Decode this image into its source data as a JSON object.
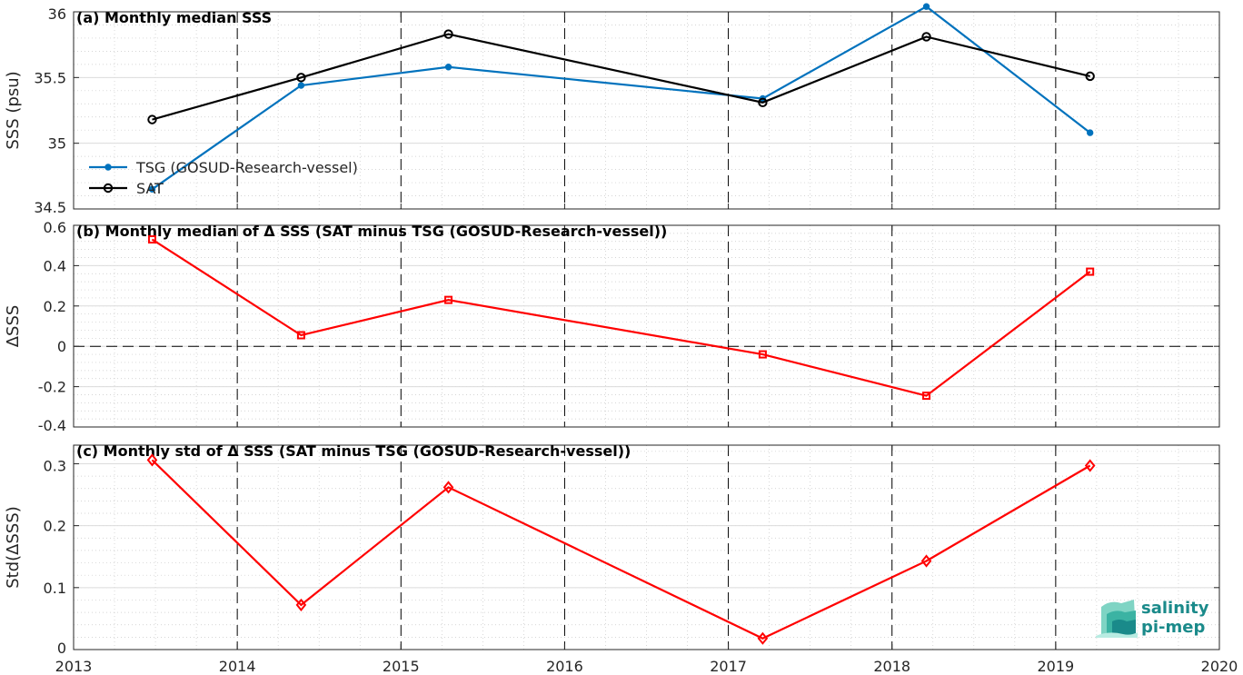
{
  "logo": {
    "line1": "salinity",
    "line2": "pi-mep",
    "color": "#1a9a96"
  },
  "colors": {
    "tsg": "#0072BD",
    "sat": "#000000",
    "delta": "#FF0000"
  },
  "chart_data": [
    {
      "type": "line",
      "title": "(a) Monthly median SSS",
      "ylabel": "SSS (psu)",
      "xlim": [
        2013,
        2020
      ],
      "ylim": [
        34.5,
        36
      ],
      "yticks": [
        34.5,
        35,
        35.5,
        36
      ],
      "ytick_labels": [
        "34.5",
        "35",
        "35.5",
        "36"
      ],
      "grid": true,
      "legend_placement": "bottom-left",
      "series": [
        {
          "name": "TSG (GOSUD-Research-vessel)",
          "marker": "dot",
          "x": [
            2013.48,
            2014.39,
            2015.29,
            2017.21,
            2018.21,
            2019.21
          ],
          "y": [
            34.65,
            35.44,
            35.58,
            35.34,
            36.04,
            35.08
          ]
        },
        {
          "name": "SAT",
          "marker": "circle",
          "x": [
            2013.48,
            2014.39,
            2015.29,
            2017.21,
            2018.21,
            2019.21
          ],
          "y": [
            35.18,
            35.5,
            35.83,
            35.31,
            35.81,
            35.51
          ]
        }
      ]
    },
    {
      "type": "line",
      "title": "(b) Monthly median of Δ SSS (SAT minus TSG (GOSUD-Research-vessel))",
      "ylabel": "ΔSSS",
      "xlim": [
        2013,
        2020
      ],
      "ylim": [
        -0.4,
        0.6
      ],
      "yticks": [
        -0.4,
        -0.2,
        0,
        0.2,
        0.4,
        0.6
      ],
      "ytick_labels": [
        "-0.4",
        "-0.2",
        "0",
        "0.2",
        "0.4",
        "0.6"
      ],
      "grid": true,
      "zero_line": true,
      "series": [
        {
          "marker": "square",
          "x": [
            2013.48,
            2014.39,
            2015.29,
            2017.21,
            2018.21,
            2019.21
          ],
          "y": [
            0.53,
            0.055,
            0.23,
            -0.04,
            -0.245,
            0.37
          ]
        }
      ]
    },
    {
      "type": "line",
      "title": "(c) Monthly std of Δ SSS (SAT minus TSG (GOSUD-Research-vessel))",
      "ylabel": "Std(ΔSSS)",
      "xlim": [
        2013,
        2020
      ],
      "ylim": [
        0,
        0.33
      ],
      "yticks": [
        0,
        0.1,
        0.2,
        0.3
      ],
      "ytick_labels": [
        "0",
        "0.1",
        "0.2",
        "0.3"
      ],
      "xticks": [
        2013,
        2014,
        2015,
        2016,
        2017,
        2018,
        2019,
        2020
      ],
      "xtick_labels": [
        "2013",
        "2014",
        "2015",
        "2016",
        "2017",
        "2018",
        "2019",
        "2020"
      ],
      "grid": true,
      "series": [
        {
          "marker": "diamond",
          "x": [
            2013.48,
            2014.39,
            2015.29,
            2017.21,
            2018.21,
            2019.21
          ],
          "y": [
            0.306,
            0.072,
            0.262,
            0.018,
            0.143,
            0.297
          ]
        }
      ]
    }
  ]
}
